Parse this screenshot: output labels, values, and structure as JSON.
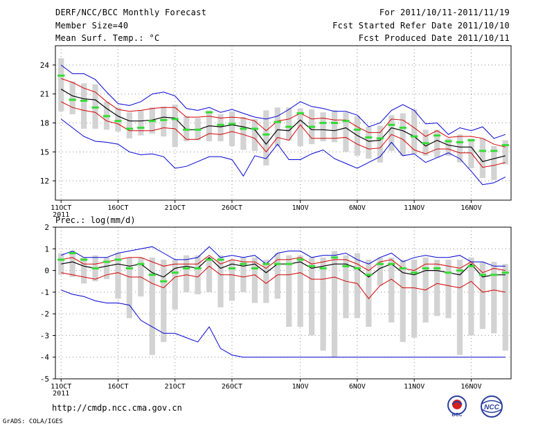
{
  "header": {
    "title": "DERF/NCC/BCC Monthly Forecast",
    "member_size": "Member Size=40",
    "variable": "Mean Surf. Temp.: °C",
    "period": "For 2011/10/11-2011/11/19",
    "start_date": "Fcst Started Refer Date 2011/10/10",
    "produced_date": "Fcst Produced Date 2011/10/11"
  },
  "footer": {
    "url": "http://cmdp.ncc.cma.gov.cn",
    "credit": "GrADS: COLA/IGES",
    "logo_left_text": "BCC",
    "logo_right_text": "NCC"
  },
  "colors": {
    "mean": "#000000",
    "spread": "#d40000",
    "envelope": "#0000d4",
    "median": "#33dd33",
    "box": "#d3d3d3"
  },
  "chart_data": [
    {
      "type": "box-and-line",
      "title": "Mean Surf. Temp.: °C",
      "xlabel": "",
      "ylabel": "°C",
      "x": [
        1,
        2,
        3,
        4,
        5,
        6,
        7,
        8,
        9,
        10,
        11,
        12,
        13,
        14,
        15,
        16,
        17,
        18,
        19,
        20,
        21,
        22,
        23,
        24,
        25,
        26,
        27,
        28,
        29,
        30,
        31,
        32,
        33,
        34,
        35,
        36,
        37,
        38,
        39,
        40
      ],
      "xlim": [
        0.5,
        40.5
      ],
      "ylim": [
        10,
        26
      ],
      "y_ticks": [
        12,
        15,
        18,
        21,
        24
      ],
      "x_ticks": [
        {
          "x": 1,
          "label": "11OCT",
          "sub": "2011"
        },
        {
          "x": 6,
          "label": "16OCT"
        },
        {
          "x": 11,
          "label": "21OCT"
        },
        {
          "x": 16,
          "label": "26OCT"
        },
        {
          "x": 22,
          "label": "1NOV"
        },
        {
          "x": 27,
          "label": "6NOV"
        },
        {
          "x": 32,
          "label": "11NOV"
        },
        {
          "x": 37,
          "label": "16NOV"
        }
      ],
      "series": [
        {
          "name": "max",
          "values": [
            24.0,
            23.1,
            23.1,
            22.5,
            21.2,
            20.0,
            19.8,
            20.2,
            21.0,
            21.2,
            20.8,
            19.5,
            19.3,
            19.6,
            19.1,
            19.4,
            19.0,
            18.6,
            18.4,
            18.7,
            19.4,
            20.2,
            19.7,
            19.5,
            19.2,
            19.2,
            18.8,
            17.6,
            18.0,
            19.3,
            19.9,
            19.3,
            17.9,
            18.0,
            16.8,
            17.5,
            17.2,
            17.6,
            16.4,
            16.8
          ]
        },
        {
          "name": "plus_sd",
          "values": [
            22.6,
            22.2,
            21.6,
            21.2,
            20.2,
            19.4,
            19.2,
            19.3,
            19.5,
            19.6,
            19.6,
            18.6,
            18.6,
            18.7,
            18.5,
            18.6,
            18.5,
            18.2,
            17.2,
            18.2,
            18.4,
            19.0,
            18.4,
            18.5,
            18.3,
            18.3,
            17.6,
            17.0,
            17.0,
            18.4,
            18.3,
            17.5,
            16.6,
            17.2,
            16.5,
            16.6,
            16.6,
            16.4,
            15.8,
            15.5
          ]
        },
        {
          "name": "mean",
          "values": [
            21.5,
            20.8,
            20.5,
            20.4,
            19.5,
            18.7,
            18.2,
            18.2,
            18.3,
            18.6,
            18.5,
            17.3,
            17.3,
            17.7,
            17.6,
            17.8,
            17.6,
            17.3,
            15.8,
            17.3,
            17.2,
            18.3,
            17.3,
            17.3,
            17.2,
            17.5,
            16.7,
            16.1,
            16.2,
            17.5,
            17.2,
            16.6,
            15.6,
            16.2,
            15.7,
            15.5,
            15.5,
            14.0,
            14.3,
            14.6
          ]
        },
        {
          "name": "minus_sd",
          "values": [
            20.2,
            19.6,
            19.3,
            19.1,
            18.2,
            17.9,
            17.2,
            17.2,
            17.2,
            17.5,
            17.4,
            16.3,
            16.3,
            16.9,
            16.8,
            17.1,
            16.8,
            16.4,
            15.0,
            16.5,
            16.2,
            17.8,
            16.4,
            16.4,
            16.4,
            16.5,
            15.8,
            15.3,
            15.4,
            16.8,
            16.3,
            15.2,
            14.8,
            15.3,
            15.3,
            14.9,
            14.9,
            13.4,
            13.6,
            13.9
          ]
        },
        {
          "name": "min",
          "values": [
            18.4,
            17.5,
            16.6,
            16.1,
            16.0,
            15.8,
            15.0,
            14.7,
            14.8,
            14.5,
            13.3,
            13.5,
            14.0,
            14.5,
            14.5,
            14.2,
            12.5,
            14.6,
            14.3,
            15.8,
            14.2,
            14.2,
            14.8,
            15.2,
            14.3,
            13.8,
            13.3,
            13.9,
            14.5,
            16.0,
            14.6,
            14.8,
            13.9,
            14.4,
            14.9,
            14.3,
            13.0,
            11.6,
            11.8,
            12.4
          ]
        },
        {
          "name": "median",
          "values": [
            22.9,
            20.4,
            20.3,
            19.6,
            18.7,
            18.2,
            17.4,
            17.5,
            18.2,
            18.3,
            18.4,
            17.3,
            17.3,
            19.1,
            17.8,
            17.9,
            17.4,
            17.4,
            16.8,
            18.1,
            17.6,
            19.0,
            17.6,
            18.0,
            18.0,
            18.2,
            17.3,
            16.5,
            16.4,
            17.8,
            17.5,
            16.6,
            15.9,
            16.7,
            16.1,
            16.0,
            16.2,
            15.1,
            15.1,
            15.7
          ]
        },
        {
          "name": "box_top",
          "values": [
            24.7,
            22.3,
            22.1,
            22.0,
            20.2,
            19.6,
            19.1,
            19.3,
            19.6,
            19.7,
            19.9,
            18.7,
            18.5,
            19.3,
            18.9,
            19.2,
            18.6,
            18.4,
            19.3,
            19.6,
            19.6,
            19.5,
            19.4,
            19.1,
            19.3,
            19.1,
            18.7,
            17.6,
            17.7,
            18.8,
            19.0,
            19.4,
            17.3,
            17.3,
            16.4,
            16.8,
            16.4,
            16.4,
            15.6,
            16.2
          ]
        },
        {
          "name": "box_bottom",
          "values": [
            19.2,
            18.9,
            17.4,
            17.4,
            17.3,
            17.1,
            16.4,
            16.7,
            16.9,
            16.6,
            15.5,
            16.1,
            16.2,
            16.1,
            16.1,
            15.6,
            15.2,
            15.1,
            13.6,
            15.6,
            16.2,
            15.6,
            15.8,
            16.1,
            16.0,
            15.0,
            14.6,
            14.3,
            13.9,
            15.1,
            14.6,
            14.8,
            14.6,
            14.4,
            14.6,
            13.9,
            13.3,
            12.3,
            12.1,
            13.7
          ]
        }
      ]
    },
    {
      "type": "box-and-line",
      "title": "Prec.: log(mm/d)",
      "xlabel": "",
      "ylabel": "log(mm/d)",
      "x": [
        1,
        2,
        3,
        4,
        5,
        6,
        7,
        8,
        9,
        10,
        11,
        12,
        13,
        14,
        15,
        16,
        17,
        18,
        19,
        20,
        21,
        22,
        23,
        24,
        25,
        26,
        27,
        28,
        29,
        30,
        31,
        32,
        33,
        34,
        35,
        36,
        37,
        38,
        39,
        40
      ],
      "xlim": [
        0.5,
        40.5
      ],
      "ylim": [
        -5,
        2
      ],
      "y_ticks": [
        -5,
        -4,
        -3,
        -2,
        -1,
        0,
        1,
        2
      ],
      "x_ticks": [
        {
          "x": 1,
          "label": "11OCT",
          "sub": "2011"
        },
        {
          "x": 6,
          "label": "16OCT"
        },
        {
          "x": 11,
          "label": "21OCT"
        },
        {
          "x": 16,
          "label": "26OCT"
        },
        {
          "x": 22,
          "label": "1NOV"
        },
        {
          "x": 27,
          "label": "6NOV"
        },
        {
          "x": 32,
          "label": "11NOV"
        },
        {
          "x": 37,
          "label": "16NOV"
        }
      ],
      "series": [
        {
          "name": "max",
          "values": [
            0.7,
            0.9,
            0.6,
            0.6,
            0.6,
            0.8,
            0.9,
            1.0,
            1.1,
            0.8,
            0.5,
            0.5,
            0.6,
            1.1,
            0.6,
            0.7,
            0.6,
            0.7,
            0.3,
            0.8,
            0.9,
            0.9,
            0.6,
            0.7,
            0.7,
            0.8,
            0.5,
            0.3,
            0.6,
            0.8,
            0.4,
            0.6,
            0.7,
            0.6,
            0.6,
            0.7,
            0.4,
            0.4,
            0.2,
            0.2
          ]
        },
        {
          "name": "plus_sd",
          "values": [
            0.5,
            0.6,
            0.3,
            0.3,
            0.4,
            0.5,
            0.6,
            0.6,
            0.4,
            0.2,
            0.3,
            0.3,
            0.3,
            0.7,
            0.3,
            0.5,
            0.4,
            0.4,
            0.1,
            0.5,
            0.5,
            0.6,
            0.3,
            0.4,
            0.5,
            0.5,
            0.3,
            0.0,
            0.4,
            0.5,
            0.1,
            0.0,
            0.3,
            0.3,
            0.2,
            0.1,
            0.4,
            -0.1,
            0.1,
            0.0
          ]
        },
        {
          "name": "mean",
          "values": [
            0.3,
            0.4,
            0.2,
            0.1,
            0.2,
            0.3,
            0.2,
            0.3,
            -0.1,
            -0.3,
            0.1,
            0.2,
            0.1,
            0.6,
            0.1,
            0.3,
            0.2,
            0.3,
            -0.1,
            0.3,
            0.3,
            0.4,
            0.1,
            0.2,
            0.3,
            0.3,
            0.1,
            -0.3,
            0.1,
            0.3,
            -0.1,
            -0.2,
            0.0,
            0.0,
            -0.1,
            -0.2,
            0.3,
            -0.3,
            -0.2,
            -0.2
          ]
        },
        {
          "name": "minus_sd",
          "values": [
            -0.1,
            -0.2,
            -0.3,
            -0.4,
            -0.2,
            -0.1,
            -0.3,
            -0.3,
            -0.6,
            -0.8,
            -0.3,
            -0.2,
            -0.3,
            0.2,
            -0.2,
            -0.2,
            -0.3,
            -0.2,
            -0.6,
            -0.2,
            -0.2,
            -0.1,
            -0.4,
            -0.4,
            -0.3,
            -0.5,
            -0.6,
            -1.3,
            -0.7,
            -0.4,
            -0.8,
            -0.8,
            -0.9,
            -0.6,
            -0.7,
            -0.8,
            -0.5,
            -1.0,
            -0.9,
            -1.0
          ]
        },
        {
          "name": "min",
          "values": [
            -0.9,
            -1.1,
            -1.2,
            -1.4,
            -1.5,
            -1.5,
            -1.6,
            -2.3,
            -2.6,
            -2.9,
            -2.9,
            -3.1,
            -3.3,
            -2.6,
            -3.6,
            -3.9,
            -4.0,
            -4.0,
            -4.0,
            -4.0,
            -4.0,
            -4.0,
            -4.0,
            -4.0,
            -4.0,
            -4.0,
            -4.0,
            -4.0,
            -4.0,
            -4.0,
            -4.0,
            -4.0,
            -4.0,
            -4.0,
            -4.0,
            -4.0,
            -4.0,
            -4.0,
            -4.0,
            -4.0
          ]
        },
        {
          "name": "median",
          "values": [
            0.5,
            0.8,
            0.5,
            0.1,
            0.4,
            0.5,
            0.1,
            0.3,
            -0.2,
            -0.5,
            -0.1,
            0.1,
            0.1,
            0.5,
            0.5,
            0.1,
            0.3,
            0.1,
            0.3,
            0.3,
            0.3,
            0.5,
            0.2,
            0.1,
            0.6,
            0.2,
            0.1,
            -0.2,
            0.3,
            0.3,
            0.1,
            -0.1,
            0.1,
            0.1,
            -0.1,
            0.0,
            0.2,
            -0.2,
            -0.2,
            -0.1
          ]
        },
        {
          "name": "box_top",
          "values": [
            0.8,
            0.9,
            0.6,
            0.7,
            0.6,
            0.8,
            0.6,
            0.6,
            0.6,
            0.5,
            0.5,
            0.7,
            0.7,
            0.6,
            0.7,
            0.5,
            0.6,
            0.6,
            0.5,
            0.8,
            0.7,
            0.7,
            0.6,
            0.6,
            0.9,
            0.7,
            0.8,
            0.5,
            0.6,
            0.6,
            0.5,
            0.5,
            0.6,
            0.5,
            0.5,
            0.5,
            0.6,
            0.4,
            0.4,
            0.3
          ]
        },
        {
          "name": "box_bottom",
          "values": [
            -0.2,
            -0.3,
            -0.6,
            -0.5,
            -0.4,
            -1.3,
            -2.2,
            -1.2,
            -3.9,
            -3.3,
            -1.8,
            -1.0,
            -1.1,
            -1.0,
            -1.7,
            -1.4,
            -1.0,
            -1.5,
            -1.5,
            -1.3,
            -2.6,
            -2.6,
            -3.0,
            -3.7,
            -4.0,
            -2.2,
            -2.2,
            -2.6,
            -0.7,
            -2.4,
            -3.3,
            -3.1,
            -2.4,
            -2.1,
            -2.2,
            -3.9,
            -3.0,
            -2.7,
            -2.9,
            -3.7
          ]
        }
      ]
    }
  ]
}
